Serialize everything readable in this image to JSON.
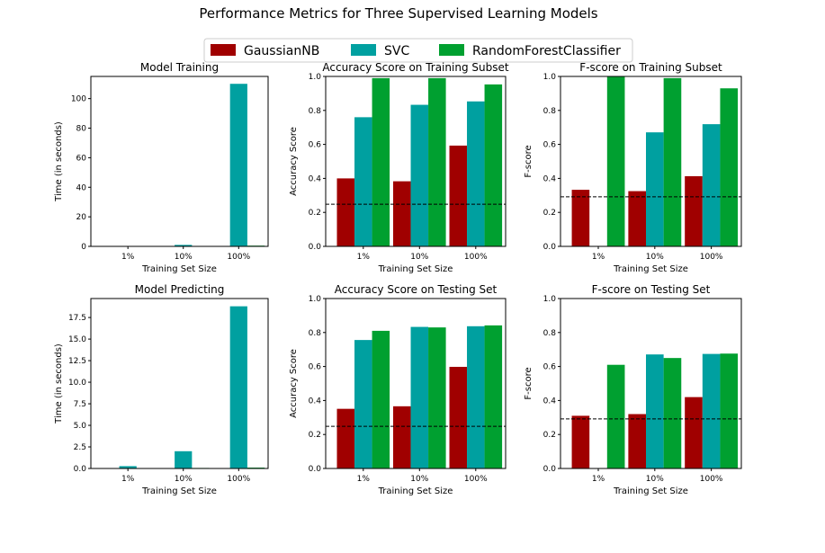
{
  "chart_data": {
    "type": "bar",
    "title": "Performance Metrics for Three Supervised Learning Models",
    "legend": {
      "placement": "top-center",
      "entries": [
        {
          "name": "GaussianNB",
          "color": "#A00000"
        },
        {
          "name": "SVC",
          "color": "#00A0A0"
        },
        {
          "name": "RandomForestClassifier",
          "color": "#00A030"
        }
      ]
    },
    "panels": [
      {
        "title": "Model Training",
        "xlabel": "Training Set Size",
        "ylabel": "Time (in seconds)",
        "categories": [
          "1%",
          "10%",
          "100%"
        ],
        "ylim": [
          0,
          115
        ],
        "yticks": [
          0,
          20,
          40,
          60,
          80,
          100
        ],
        "ytick_labels": [
          "0",
          "20",
          "40",
          "60",
          "80",
          "100"
        ],
        "series": [
          {
            "name": "GaussianNB",
            "values": [
              0.01,
              0.01,
              0.05
            ]
          },
          {
            "name": "SVC",
            "values": [
              0.01,
              1.0,
              110
            ]
          },
          {
            "name": "RandomForestClassifier",
            "values": [
              0.01,
              0.05,
              0.5
            ]
          }
        ],
        "baseline": null
      },
      {
        "title": "Accuracy Score on Training Subset",
        "xlabel": "Training Set Size",
        "ylabel": "Accuracy Score",
        "categories": [
          "1%",
          "10%",
          "100%"
        ],
        "ylim": [
          0,
          1.0
        ],
        "yticks": [
          0,
          0.2,
          0.4,
          0.6,
          0.8,
          1.0
        ],
        "ytick_labels": [
          "0.0",
          "0.2",
          "0.4",
          "0.6",
          "0.8",
          "1.0"
        ],
        "series": [
          {
            "name": "GaussianNB",
            "values": [
              0.4,
              0.383,
              0.593
            ]
          },
          {
            "name": "SVC",
            "values": [
              0.76,
              0.833,
              0.853
            ]
          },
          {
            "name": "RandomForestClassifier",
            "values": [
              0.99,
              0.99,
              0.953
            ]
          }
        ],
        "baseline": 0.2478
      },
      {
        "title": "F-score on Training Subset",
        "xlabel": "Training Set Size",
        "ylabel": "F-score",
        "categories": [
          "1%",
          "10%",
          "100%"
        ],
        "ylim": [
          0,
          1.0
        ],
        "yticks": [
          0,
          0.2,
          0.4,
          0.6,
          0.8,
          1.0
        ],
        "ytick_labels": [
          "0.0",
          "0.2",
          "0.4",
          "0.6",
          "0.8",
          "1.0"
        ],
        "series": [
          {
            "name": "GaussianNB",
            "values": [
              0.333,
              0.325,
              0.413
            ]
          },
          {
            "name": "SVC",
            "values": [
              0.0,
              0.671,
              0.719
            ]
          },
          {
            "name": "RandomForestClassifier",
            "values": [
              1.0,
              0.99,
              0.93
            ]
          }
        ],
        "baseline": 0.2917
      },
      {
        "title": "Model Predicting",
        "xlabel": "Training Set Size",
        "ylabel": "Time (in seconds)",
        "categories": [
          "1%",
          "10%",
          "100%"
        ],
        "ylim": [
          0,
          19.7
        ],
        "yticks": [
          0,
          2.5,
          5.0,
          7.5,
          10.0,
          12.5,
          15.0,
          17.5
        ],
        "ytick_labels": [
          "0.0",
          "2.5",
          "5.0",
          "7.5",
          "10.0",
          "12.5",
          "15.0",
          "17.5"
        ],
        "series": [
          {
            "name": "GaussianNB",
            "values": [
              0.01,
              0.01,
              0.02
            ]
          },
          {
            "name": "SVC",
            "values": [
              0.27,
              2.0,
              18.8
            ]
          },
          {
            "name": "RandomForestClassifier",
            "values": [
              0.02,
              0.06,
              0.1
            ]
          }
        ],
        "baseline": null
      },
      {
        "title": "Accuracy Score on Testing Set",
        "xlabel": "Training Set Size",
        "ylabel": "Accuracy Score",
        "categories": [
          "1%",
          "10%",
          "100%"
        ],
        "ylim": [
          0,
          1.0
        ],
        "yticks": [
          0,
          0.2,
          0.4,
          0.6,
          0.8,
          1.0
        ],
        "ytick_labels": [
          "0.0",
          "0.2",
          "0.4",
          "0.6",
          "0.8",
          "1.0"
        ],
        "series": [
          {
            "name": "GaussianNB",
            "values": [
              0.351,
              0.366,
              0.598
            ]
          },
          {
            "name": "SVC",
            "values": [
              0.756,
              0.833,
              0.837
            ]
          },
          {
            "name": "RandomForestClassifier",
            "values": [
              0.81,
              0.83,
              0.842
            ]
          }
        ],
        "baseline": 0.2478
      },
      {
        "title": "F-score on Testing Set",
        "xlabel": "Training Set Size",
        "ylabel": "F-score",
        "categories": [
          "1%",
          "10%",
          "100%"
        ],
        "ylim": [
          0,
          1.0
        ],
        "yticks": [
          0,
          0.2,
          0.4,
          0.6,
          0.8,
          1.0
        ],
        "ytick_labels": [
          "0.0",
          "0.2",
          "0.4",
          "0.6",
          "0.8",
          "1.0"
        ],
        "series": [
          {
            "name": "GaussianNB",
            "values": [
              0.31,
              0.32,
              0.42
            ]
          },
          {
            "name": "SVC",
            "values": [
              0.0,
              0.671,
              0.674
            ]
          },
          {
            "name": "RandomForestClassifier",
            "values": [
              0.61,
              0.65,
              0.676
            ]
          }
        ],
        "baseline": 0.2917
      }
    ]
  }
}
